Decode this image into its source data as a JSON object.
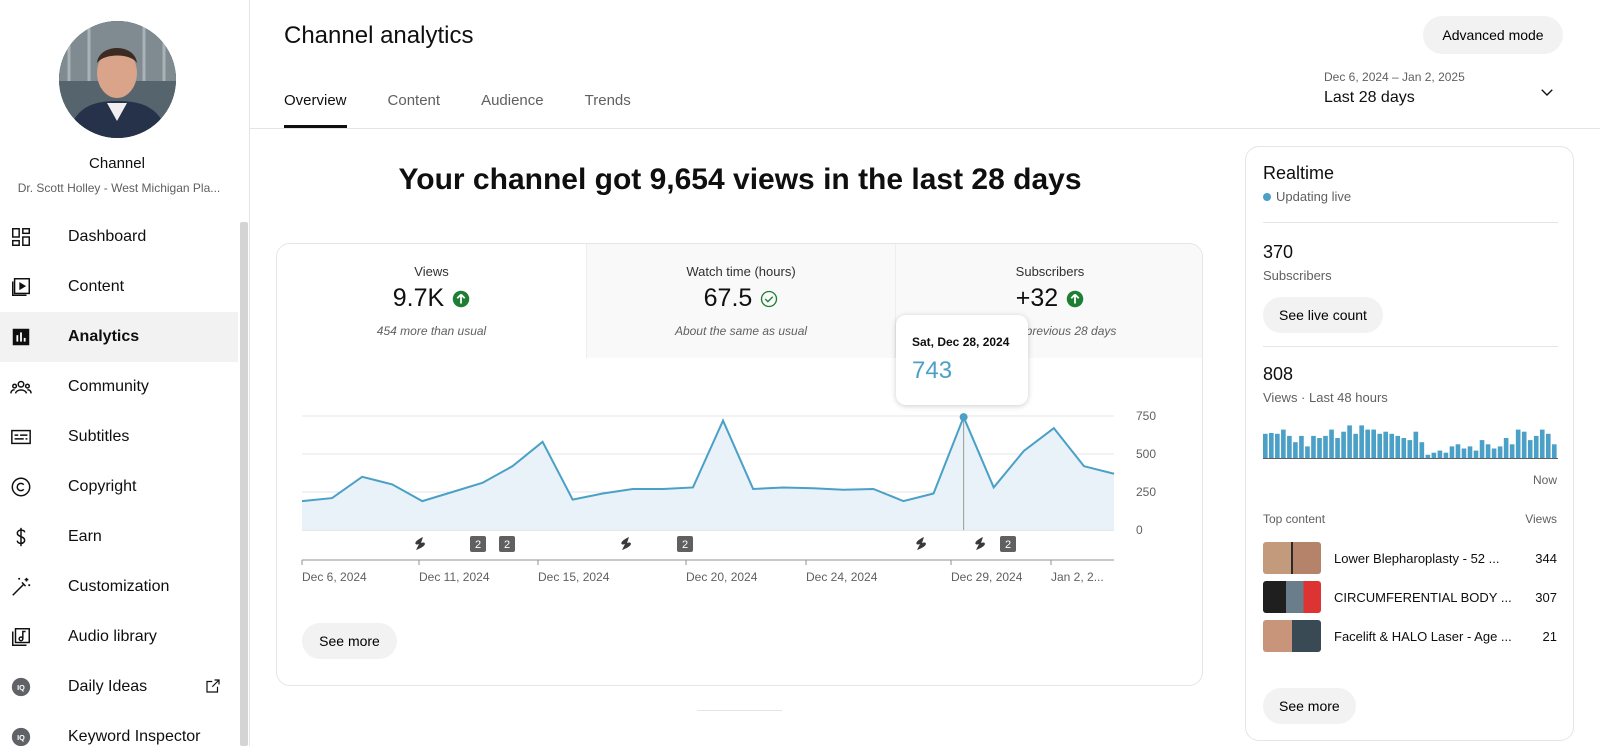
{
  "sidebar": {
    "channel_label": "Channel",
    "channel_name": "Dr. Scott Holley - West Michigan Pla...",
    "items": [
      {
        "label": "Dashboard",
        "icon": "dashboard-icon"
      },
      {
        "label": "Content",
        "icon": "content-icon"
      },
      {
        "label": "Analytics",
        "icon": "analytics-icon"
      },
      {
        "label": "Community",
        "icon": "community-icon"
      },
      {
        "label": "Subtitles",
        "icon": "subtitles-icon"
      },
      {
        "label": "Copyright",
        "icon": "copyright-icon"
      },
      {
        "label": "Earn",
        "icon": "dollar-icon"
      },
      {
        "label": "Customization",
        "icon": "magic-wand-icon"
      },
      {
        "label": "Audio library",
        "icon": "audio-library-icon"
      },
      {
        "label": "Daily Ideas",
        "icon": "iq-icon"
      },
      {
        "label": "Keyword Inspector",
        "icon": "iq-icon"
      }
    ]
  },
  "header": {
    "title": "Channel analytics",
    "tabs": [
      "Overview",
      "Content",
      "Audience",
      "Trends"
    ],
    "advanced_mode": "Advanced mode",
    "date_range": "Dec 6, 2024 – Jan 2, 2025",
    "date_label": "Last 28 days"
  },
  "main": {
    "headline": "Your channel got 9,654 views in the last 28 days",
    "metrics": [
      {
        "title": "Views",
        "value": "9.7K",
        "sub": "454 more than usual",
        "status": "up-arrow-icon"
      },
      {
        "title": "Watch time (hours)",
        "value": "67.5",
        "sub": "About the same as usual",
        "status": "check-circle-icon"
      },
      {
        "title": "Subscribers",
        "value": "+32",
        "sub": "… than previous 28 days",
        "status": "up-arrow-icon"
      }
    ],
    "see_more": "See more",
    "tooltip": {
      "date": "Sat, Dec 28, 2024",
      "value": "743"
    }
  },
  "chart_data": {
    "type": "area",
    "series": [
      {
        "values": [
          190,
          210,
          350,
          300,
          190,
          250,
          310,
          420,
          580,
          200,
          240,
          270,
          270,
          280,
          720,
          270,
          280,
          275,
          265,
          270,
          190,
          240,
          743,
          280,
          520,
          670,
          420,
          370
        ]
      }
    ],
    "x_tick_labels": [
      "Dec 6, 2024",
      "Dec 11, 2024",
      "Dec 15, 2024",
      "Dec 20, 2024",
      "Dec 24, 2024",
      "Dec 29, 2024",
      "Jan 2, 2..."
    ],
    "y_tick_labels": [
      "750",
      "500",
      "250",
      "0"
    ],
    "ylim": [
      0,
      750
    ],
    "grid": true,
    "color": "#4aa0c6",
    "markers": [
      {
        "kind": "shorts-icon",
        "label": ""
      },
      {
        "kind": "count",
        "label": "2"
      },
      {
        "kind": "count",
        "label": "2"
      },
      {
        "kind": "shorts-icon",
        "label": ""
      },
      {
        "kind": "count",
        "label": "2"
      },
      {
        "kind": "shorts-icon",
        "label": ""
      },
      {
        "kind": "shorts-icon",
        "label": ""
      },
      {
        "kind": "count",
        "label": "2"
      }
    ]
  },
  "realtime": {
    "title": "Realtime",
    "live": "Updating live",
    "subscribers_count": "370",
    "subscribers_label": "Subscribers",
    "see_live_count": "See live count",
    "views_count": "808",
    "views_label": "Views · Last 48 hours",
    "bars": [
      0.6,
      0.62,
      0.6,
      0.7,
      0.55,
      0.4,
      0.55,
      0.3,
      0.55,
      0.5,
      0.55,
      0.7,
      0.5,
      0.65,
      0.8,
      0.6,
      0.8,
      0.7,
      0.7,
      0.6,
      0.65,
      0.6,
      0.55,
      0.5,
      0.45,
      0.65,
      0.4,
      0.1,
      0.15,
      0.2,
      0.15,
      0.3,
      0.35,
      0.25,
      0.3,
      0.2,
      0.45,
      0.35,
      0.25,
      0.3,
      0.5,
      0.35,
      0.7,
      0.65,
      0.45,
      0.55,
      0.7,
      0.6,
      0.35
    ],
    "now": "Now",
    "top_content_label": "Top content",
    "views_col_label": "Views",
    "top_content": [
      {
        "title": "Lower Blepharoplasty - 52 ...",
        "views": "344"
      },
      {
        "title": "CIRCUMFERENTIAL BODY ...",
        "views": "307"
      },
      {
        "title": "Facelift & HALO Laser - Age ...",
        "views": "21"
      }
    ],
    "see_more": "See more"
  }
}
